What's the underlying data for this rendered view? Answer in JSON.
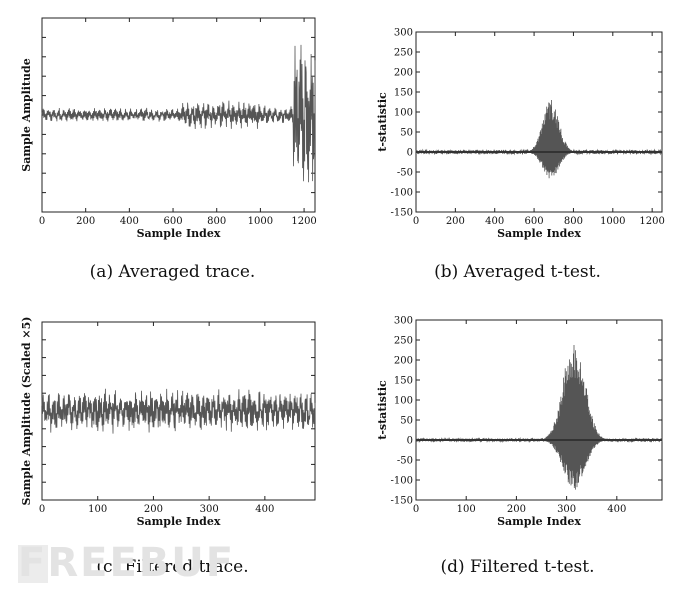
{
  "chart_data": [
    {
      "id": "a",
      "type": "line",
      "caption": "(a) Averaged trace.",
      "xlabel": "Sample Index",
      "ylabel": "Sample Amplitude",
      "xlim": [
        0,
        1250
      ],
      "xticks": [
        0,
        200,
        400,
        600,
        800,
        1000,
        1200
      ],
      "yticks_labeled": false,
      "signal": {
        "baseline": 0.5,
        "segments": [
          {
            "x_from": 0,
            "x_to": 640,
            "amplitude": 0.04
          },
          {
            "x_from": 640,
            "x_to": 1000,
            "amplitude": 0.08
          },
          {
            "x_from": 1000,
            "x_to": 1150,
            "amplitude": 0.05
          },
          {
            "x_from": 1150,
            "x_to": 1250,
            "amplitude": 0.45
          }
        ]
      }
    },
    {
      "id": "b",
      "type": "line",
      "caption": "(b) Averaged t-test.",
      "xlabel": "Sample Index",
      "ylabel": "t-statistic",
      "xlim": [
        0,
        1250
      ],
      "ylim": [
        -150,
        300
      ],
      "xticks": [
        0,
        200,
        400,
        600,
        800,
        1000,
        1200
      ],
      "yticks": [
        -150,
        -100,
        -50,
        0,
        50,
        100,
        150,
        200,
        250,
        300
      ],
      "signal": {
        "baseline": 0,
        "noise_band": 5,
        "burst_x_range": [
          570,
          800
        ],
        "burst_peak": 135,
        "burst_trough": -70
      }
    },
    {
      "id": "c",
      "type": "line",
      "caption": "(c) Filtered trace.",
      "xlabel": "Sample Index",
      "ylabel": "Sample Amplitude (Scaled ×5)",
      "xlim": [
        0,
        490
      ],
      "xticks": [
        0,
        100,
        200,
        300,
        400
      ],
      "yticks_labeled": false,
      "signal": {
        "baseline": 0.5,
        "amplitude": 0.13
      }
    },
    {
      "id": "d",
      "type": "line",
      "caption": "(d) Filtered t-test.",
      "xlabel": "Sample Index",
      "ylabel": "t-statistic",
      "xlim": [
        0,
        490
      ],
      "ylim": [
        -150,
        300
      ],
      "xticks": [
        0,
        100,
        200,
        300,
        400
      ],
      "yticks": [
        -150,
        -100,
        -50,
        0,
        50,
        100,
        150,
        200,
        250,
        300
      ],
      "signal": {
        "baseline": 0,
        "noise_band": 4,
        "burst_x_range": [
          255,
          375
        ],
        "burst_peak": 255,
        "burst_trough": -125
      }
    }
  ],
  "watermark": "FREEBUF"
}
